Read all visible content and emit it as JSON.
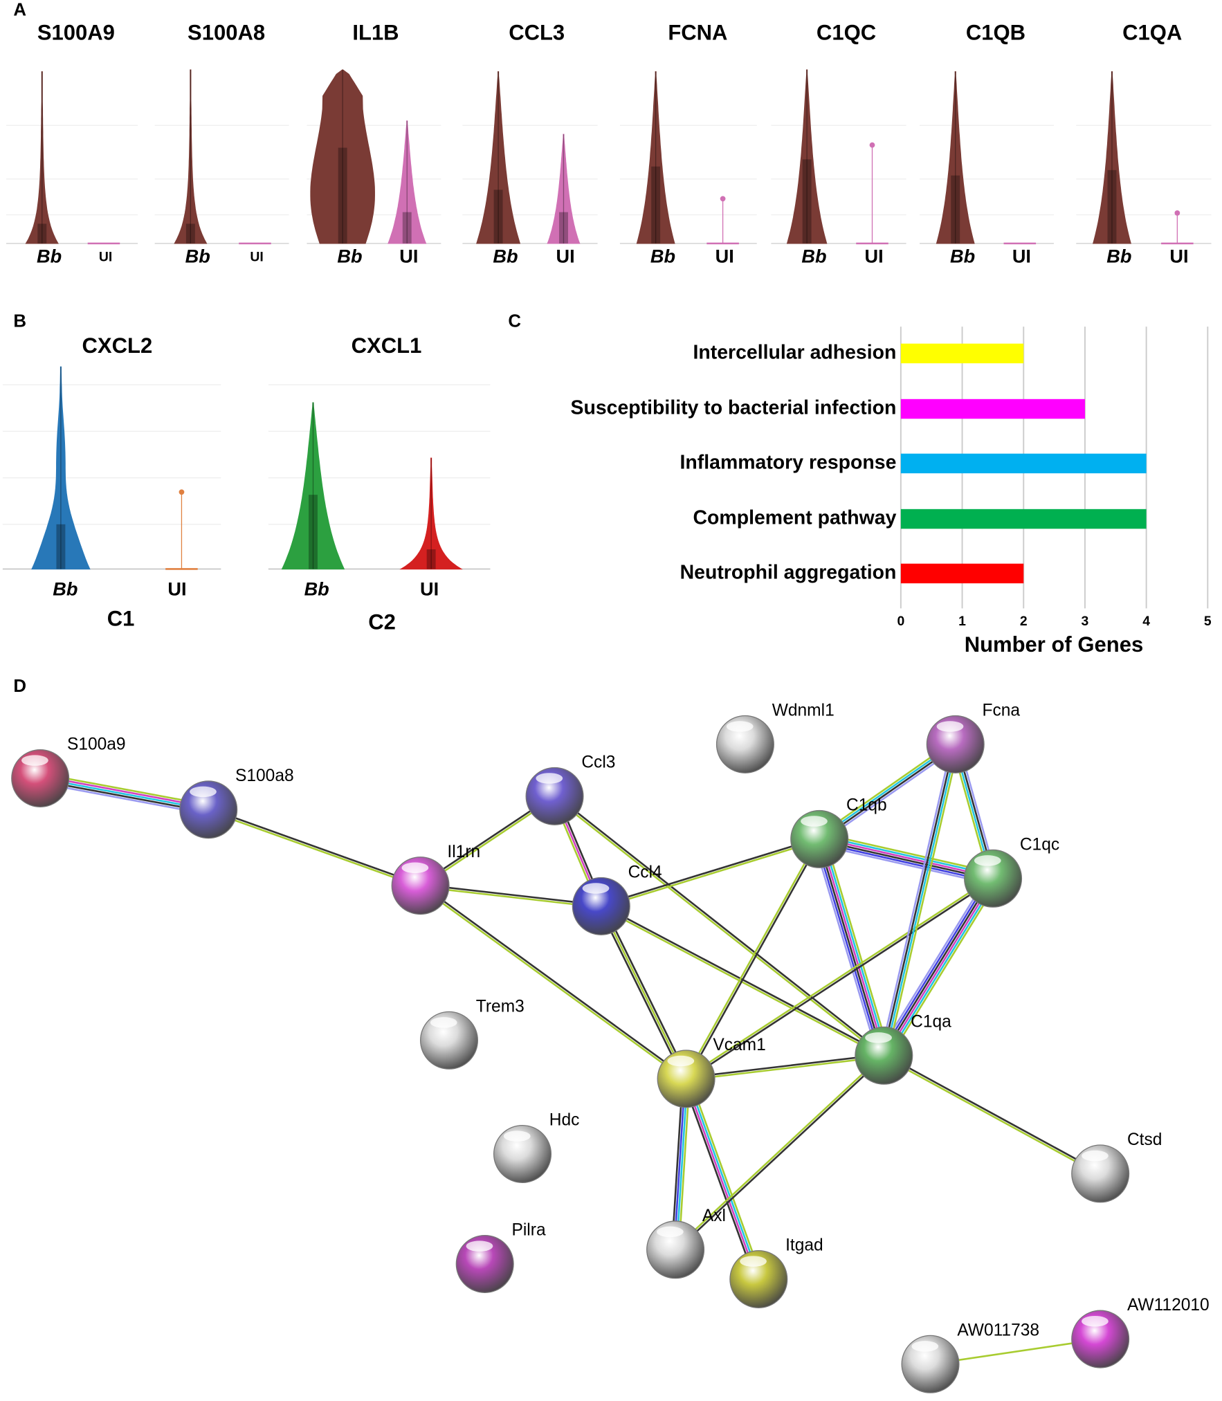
{
  "panel_labels": [
    "A",
    "B",
    "C",
    "D"
  ],
  "violins_a": [
    {
      "gene": "S100A9",
      "groups": [
        "Bb",
        "UI"
      ]
    },
    {
      "gene": "S100A8",
      "groups": [
        "Bb",
        "UI"
      ]
    },
    {
      "gene": "IL1B",
      "groups": [
        "Bb",
        "UI"
      ]
    },
    {
      "gene": "CCL3",
      "groups": [
        "Bb",
        "UI"
      ]
    },
    {
      "gene": "FCNA",
      "groups": [
        "Bb",
        "UI"
      ]
    },
    {
      "gene": "C1QC",
      "groups": [
        "Bb",
        "UI"
      ]
    },
    {
      "gene": "C1QB",
      "groups": [
        "Bb",
        "UI"
      ]
    },
    {
      "gene": "C1QA",
      "groups": [
        "Bb",
        "UI"
      ]
    }
  ],
  "violins_b": [
    {
      "gene": "CXCL2",
      "groups": [
        "Bb",
        "UI"
      ],
      "cluster": "C1"
    },
    {
      "gene": "CXCL1",
      "groups": [
        "Bb",
        "UI"
      ],
      "cluster": "C2"
    }
  ],
  "chart_data": {
    "type": "bar",
    "orientation": "horizontal",
    "categories": [
      "Intercellular adhesion",
      "Susceptibility to bacterial infection",
      "Inflammatory response",
      "Complement pathway",
      "Neutrophil aggregation"
    ],
    "values": [
      2,
      3,
      4,
      4,
      2
    ],
    "colors": [
      "#ffff00",
      "#ff00ff",
      "#00b0f0",
      "#00b050",
      "#ff0000"
    ],
    "xlabel": "Number of Genes",
    "xlim": [
      0,
      5
    ],
    "xticks": [
      0,
      1,
      2,
      3,
      4,
      5
    ],
    "grid": true
  },
  "network": {
    "nodes": [
      {
        "label": "S100a9",
        "color": "#d4507a"
      },
      {
        "label": "S100a8",
        "color": "#6a62c8"
      },
      {
        "label": "Il1rn",
        "color": "#d85ed8"
      },
      {
        "label": "Ccl3",
        "color": "#7060d0"
      },
      {
        "label": "Ccl4",
        "color": "#4848c8"
      },
      {
        "label": "Wdnml1",
        "color": "#dcdcdc"
      },
      {
        "label": "Fcna",
        "color": "#b86cc0"
      },
      {
        "label": "C1qb",
        "color": "#72bc72"
      },
      {
        "label": "C1qc",
        "color": "#72bc72"
      },
      {
        "label": "C1qa",
        "color": "#66b466"
      },
      {
        "label": "Trem3",
        "color": "#dcdcdc"
      },
      {
        "label": "Vcam1",
        "color": "#d8d855"
      },
      {
        "label": "Hdc",
        "color": "#dcdcdc"
      },
      {
        "label": "Ctsd",
        "color": "#dcdcdc"
      },
      {
        "label": "Axl",
        "color": "#dcdcdc"
      },
      {
        "label": "Itgad",
        "color": "#c8c840"
      },
      {
        "label": "Pilra",
        "color": "#b848b8"
      },
      {
        "label": "AW011738",
        "color": "#dcdcdc"
      },
      {
        "label": "AW112010",
        "color": "#d448d4"
      }
    ]
  }
}
